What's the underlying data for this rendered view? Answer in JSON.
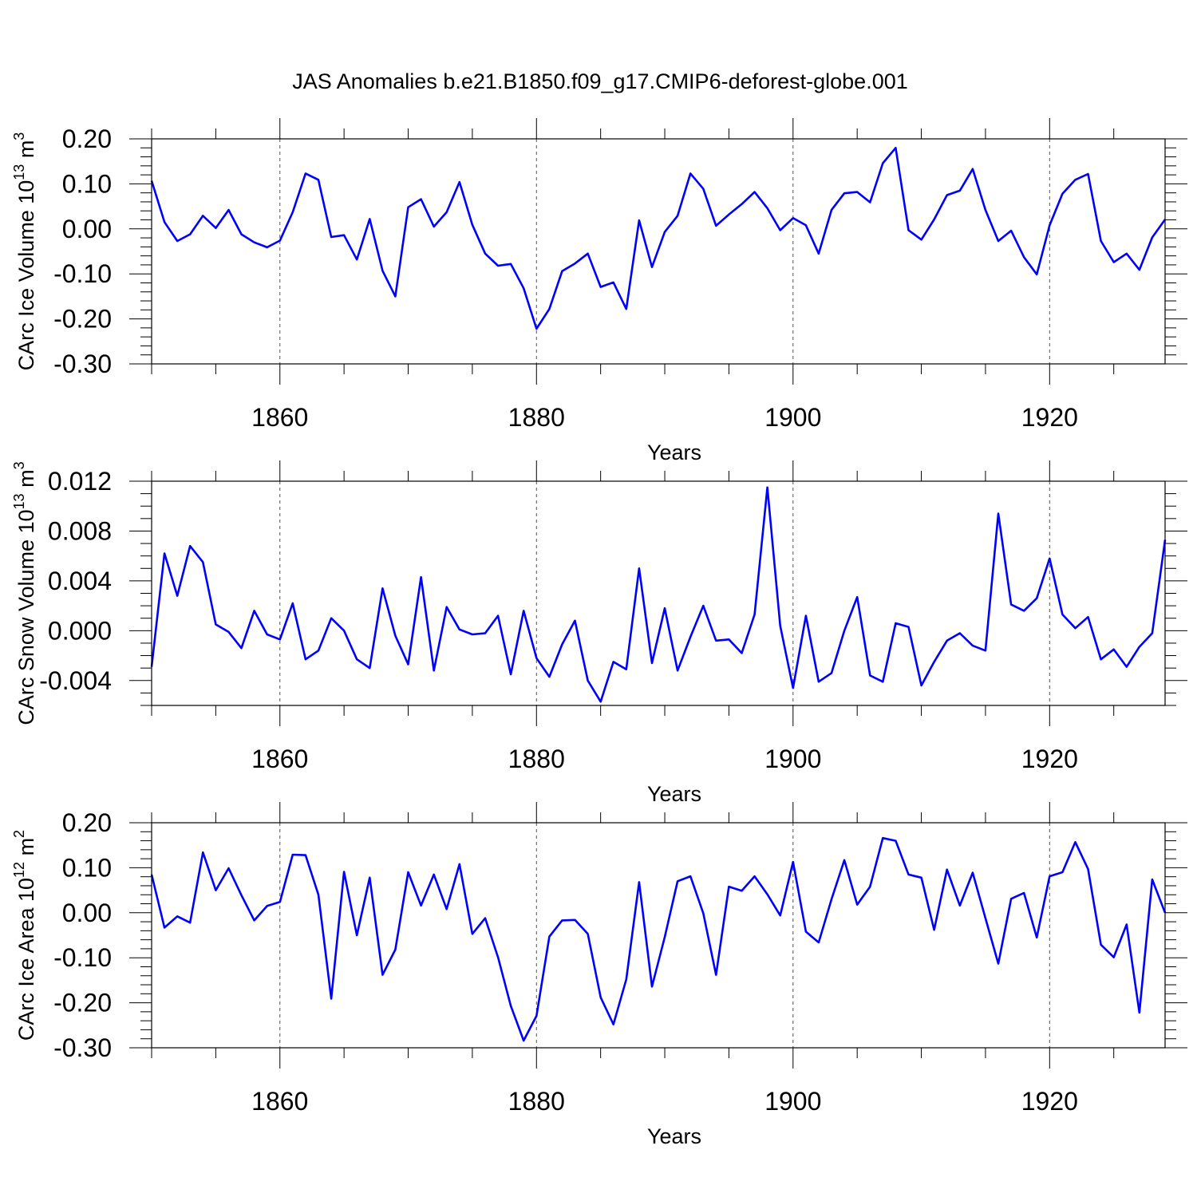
{
  "figure_title": "JAS Anomalies b.e21.B1850.f09_g17.CMIP6-deforest-globe.001",
  "chart_data": [
    {
      "type": "line",
      "ylabel": {
        "main": "CArc Ice Volume 10",
        "exp": "13",
        "unit": " m",
        "unit_exp": "3"
      },
      "xlabel": "Years",
      "xlim": [
        1850,
        1929
      ],
      "ylim": [
        -0.3,
        0.2
      ],
      "x_ticks": [
        1860,
        1880,
        1900,
        1920
      ],
      "x_tick_labels": [
        "1860",
        "1880",
        "1900",
        "1920"
      ],
      "x_minor_step": 5,
      "y_ticks": [
        0.2,
        0.1,
        0.0,
        -0.1,
        -0.2,
        -0.3
      ],
      "y_tick_labels": [
        "0.20",
        "0.10",
        "0.00",
        "-0.10",
        "-0.20",
        "-0.30"
      ],
      "y_minor_step": 0.02,
      "gridlines_x": [
        1860,
        1880,
        1900,
        1920
      ],
      "line_color": "#0000ff",
      "x_start": 1850,
      "values": [
        0.107,
        0.015,
        -0.027,
        -0.012,
        0.029,
        0.002,
        0.042,
        -0.012,
        -0.03,
        -0.041,
        -0.026,
        0.037,
        0.123,
        0.109,
        -0.018,
        -0.014,
        -0.068,
        0.022,
        -0.093,
        -0.15,
        0.048,
        0.066,
        0.005,
        0.037,
        0.104,
        0.009,
        -0.055,
        -0.082,
        -0.078,
        -0.132,
        -0.222,
        -0.178,
        -0.094,
        -0.077,
        -0.055,
        -0.129,
        -0.119,
        -0.178,
        0.019,
        -0.085,
        -0.007,
        0.029,
        0.123,
        0.089,
        0.007,
        0.032,
        0.055,
        0.082,
        0.046,
        -0.003,
        0.024,
        0.008,
        -0.055,
        0.042,
        0.079,
        0.082,
        0.059,
        0.146,
        0.18,
        -0.003,
        -0.024,
        0.021,
        0.075,
        0.085,
        0.133,
        0.042,
        -0.027,
        -0.004,
        -0.063,
        -0.101,
        0.008,
        0.078,
        0.109,
        0.122,
        -0.027,
        -0.074,
        -0.055,
        -0.091,
        -0.019,
        0.021
      ]
    },
    {
      "type": "line",
      "ylabel": {
        "main": "CArc Snow Volume 10",
        "exp": "13",
        "unit": " m",
        "unit_exp": "3"
      },
      "xlabel": "Years",
      "xlim": [
        1850,
        1929
      ],
      "ylim": [
        -0.006,
        0.012
      ],
      "x_ticks": [
        1860,
        1880,
        1900,
        1920
      ],
      "x_tick_labels": [
        "1860",
        "1880",
        "1900",
        "1920"
      ],
      "x_minor_step": 5,
      "y_ticks": [
        0.012,
        0.008,
        0.004,
        0.0,
        -0.004
      ],
      "y_tick_labels": [
        "0.012",
        "0.008",
        "0.004",
        "0.000",
        "-0.004"
      ],
      "y_minor_step": 0.001,
      "gridlines_x": [
        1860,
        1880,
        1900,
        1920
      ],
      "line_color": "#0000ff",
      "x_start": 1850,
      "values": [
        -0.0029,
        0.0062,
        0.0028,
        0.0068,
        0.0055,
        0.0005,
        -0.0001,
        -0.0014,
        0.0016,
        -0.0003,
        -0.0007,
        0.0022,
        -0.0023,
        -0.0016,
        0.001,
        0.0,
        -0.0023,
        -0.003,
        0.0034,
        -0.0004,
        -0.0027,
        0.0043,
        -0.0032,
        0.0019,
        0.0001,
        -0.0003,
        -0.0002,
        0.0012,
        -0.0035,
        0.0016,
        -0.0022,
        -0.0037,
        -0.0011,
        0.0008,
        -0.004,
        -0.0057,
        -0.0025,
        -0.0031,
        0.005,
        -0.0026,
        0.0018,
        -0.0032,
        -0.0005,
        0.002,
        -0.0008,
        -0.0007,
        -0.0018,
        0.0013,
        0.0115,
        0.0004,
        -0.0046,
        0.0012,
        -0.0041,
        -0.0034,
        0.0,
        0.0027,
        -0.0036,
        -0.0041,
        0.0006,
        0.0003,
        -0.0044,
        -0.0025,
        -0.0008,
        -0.0002,
        -0.0012,
        -0.0016,
        0.0094,
        0.0021,
        0.0016,
        0.0026,
        0.0058,
        0.0013,
        0.0002,
        0.0011,
        -0.0023,
        -0.0015,
        -0.0029,
        -0.0013,
        -0.0002,
        0.0073
      ]
    },
    {
      "type": "line",
      "ylabel": {
        "main": "CArc Ice Area 10",
        "exp": "12",
        "unit": " m",
        "unit_exp": "2"
      },
      "xlabel": "Years",
      "xlim": [
        1850,
        1929
      ],
      "ylim": [
        -0.3,
        0.2
      ],
      "x_ticks": [
        1860,
        1880,
        1900,
        1920
      ],
      "x_tick_labels": [
        "1860",
        "1880",
        "1900",
        "1920"
      ],
      "x_minor_step": 5,
      "y_ticks": [
        0.2,
        0.1,
        0.0,
        -0.1,
        -0.2,
        -0.3
      ],
      "y_tick_labels": [
        "0.20",
        "0.10",
        "0.00",
        "-0.10",
        "-0.20",
        "-0.30"
      ],
      "y_minor_step": 0.02,
      "gridlines_x": [
        1860,
        1880,
        1900,
        1920
      ],
      "line_color": "#0000ff",
      "x_start": 1850,
      "values": [
        0.085,
        -0.033,
        -0.008,
        -0.022,
        0.134,
        0.05,
        0.099,
        0.039,
        -0.017,
        0.015,
        0.024,
        0.129,
        0.128,
        0.04,
        -0.191,
        0.091,
        -0.05,
        0.078,
        -0.138,
        -0.082,
        0.09,
        0.016,
        0.085,
        0.008,
        0.108,
        -0.047,
        -0.012,
        -0.099,
        -0.207,
        -0.284,
        -0.229,
        -0.053,
        -0.017,
        -0.016,
        -0.047,
        -0.188,
        -0.248,
        -0.148,
        0.068,
        -0.164,
        -0.054,
        0.07,
        0.081,
        -0.001,
        -0.138,
        0.058,
        0.049,
        0.081,
        0.041,
        -0.006,
        0.113,
        -0.042,
        -0.066,
        0.03,
        0.117,
        0.018,
        0.058,
        0.166,
        0.16,
        0.085,
        0.078,
        -0.038,
        0.096,
        0.016,
        0.089,
        -0.012,
        -0.113,
        0.031,
        0.044,
        -0.055,
        0.081,
        0.09,
        0.157,
        0.097,
        -0.071,
        -0.099,
        -0.026,
        -0.222,
        0.074,
        0.0
      ]
    }
  ]
}
